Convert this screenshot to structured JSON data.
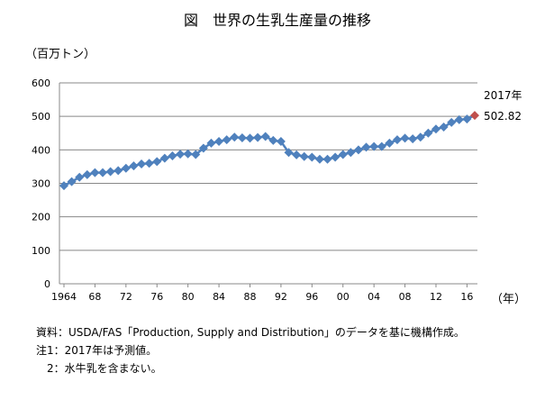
{
  "chart_data": {
    "type": "line",
    "title": "図　世界の生乳生産量の推移",
    "ylabel": "（百万トン）",
    "xlabel": "（年）",
    "ylim": [
      0,
      600
    ],
    "yticks": [
      0,
      100,
      200,
      300,
      400,
      500,
      600
    ],
    "xtick_labels": [
      "1964",
      "68",
      "72",
      "76",
      "80",
      "84",
      "88",
      "92",
      "96",
      "00",
      "04",
      "08",
      "12",
      "16"
    ],
    "xtick_years": [
      1964,
      1968,
      1972,
      1976,
      1980,
      1984,
      1988,
      1992,
      1996,
      2000,
      2004,
      2008,
      2012,
      2016
    ],
    "x": [
      1964,
      1965,
      1966,
      1967,
      1968,
      1969,
      1970,
      1971,
      1972,
      1973,
      1974,
      1975,
      1976,
      1977,
      1978,
      1979,
      1980,
      1981,
      1982,
      1983,
      1984,
      1985,
      1986,
      1987,
      1988,
      1989,
      1990,
      1991,
      1992,
      1993,
      1994,
      1995,
      1996,
      1997,
      1998,
      1999,
      2000,
      2001,
      2002,
      2003,
      2004,
      2005,
      2006,
      2007,
      2008,
      2009,
      2010,
      2011,
      2012,
      2013,
      2014,
      2015,
      2016,
      2017
    ],
    "values": [
      293,
      305,
      318,
      326,
      332,
      332,
      335,
      338,
      345,
      352,
      358,
      360,
      365,
      375,
      382,
      387,
      388,
      386,
      405,
      420,
      425,
      430,
      438,
      436,
      435,
      437,
      440,
      428,
      425,
      392,
      385,
      380,
      378,
      372,
      372,
      378,
      386,
      392,
      400,
      408,
      410,
      410,
      420,
      430,
      435,
      433,
      438,
      450,
      462,
      468,
      482,
      490,
      492,
      502.82
    ],
    "annotation_year": "2017年",
    "annotation_value": "502.82",
    "series_color": "#4F81BD",
    "highlight_color": "#C0504D"
  },
  "notes": [
    "資料：USDA/FAS「Production, Supply and Distribution」のデータを基に機構作成。",
    "注1：2017年は予測値。",
    "　2：水牛乳を含まない。"
  ]
}
